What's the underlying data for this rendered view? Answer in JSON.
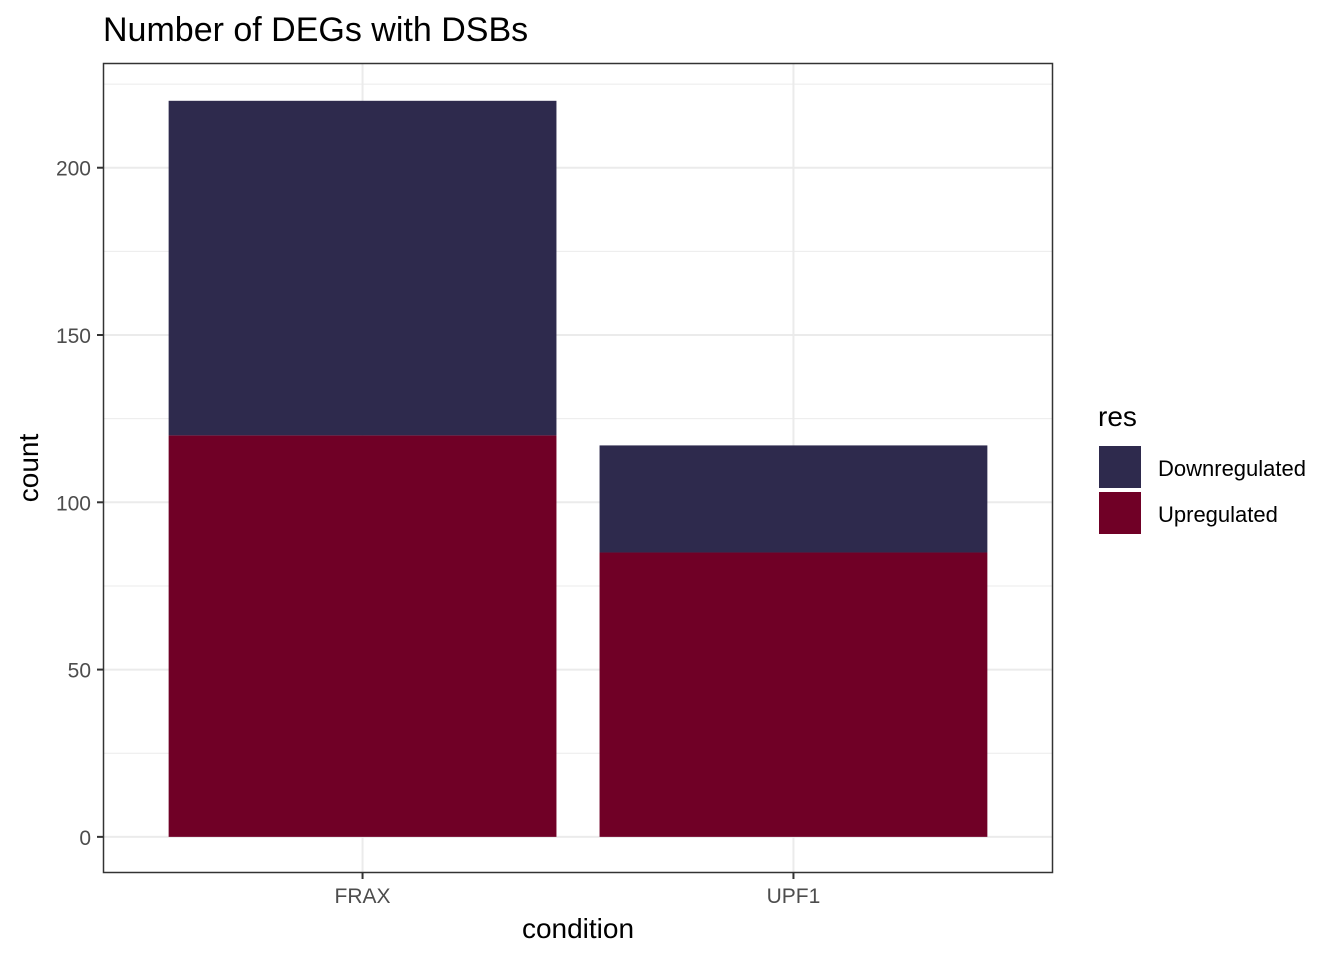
{
  "chart_data": {
    "type": "bar",
    "stacked": true,
    "title": "Number of DEGs with DSBs",
    "xlabel": "condition",
    "ylabel": "count",
    "categories": [
      "FRAX",
      "UPF1"
    ],
    "series": [
      {
        "name": "Upregulated",
        "values": [
          120,
          85
        ],
        "color": "#700026"
      },
      {
        "name": "Downregulated",
        "values": [
          100,
          32
        ],
        "color": "#2e2a4d"
      }
    ],
    "ylim": [
      -10.5,
      231
    ],
    "yticks": [
      0,
      50,
      100,
      150,
      200
    ],
    "grid": true,
    "legend": {
      "title": "res",
      "placement": "right",
      "entries": [
        "Downregulated",
        "Upregulated"
      ]
    }
  }
}
